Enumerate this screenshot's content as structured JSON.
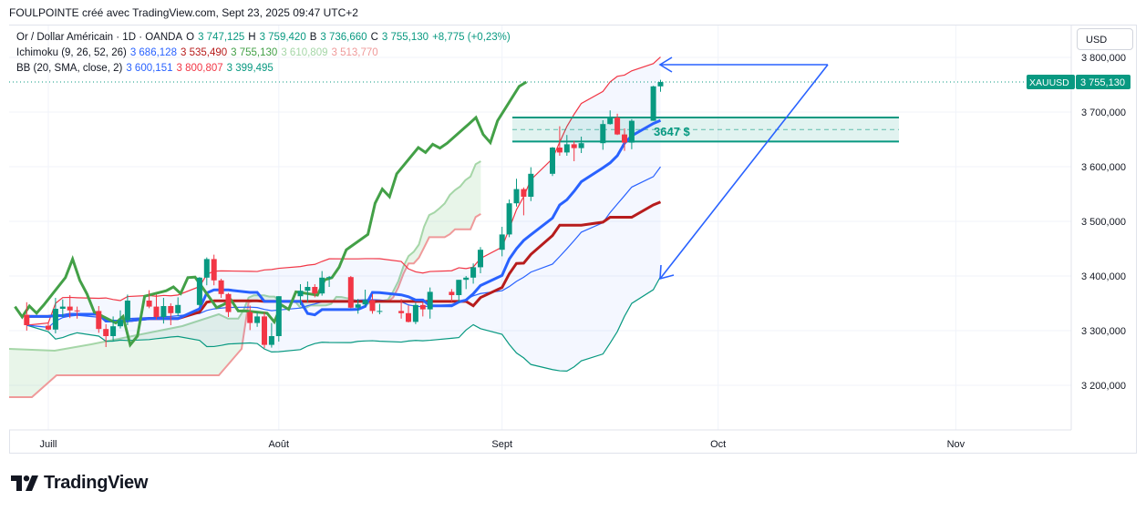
{
  "header": {
    "title": "FOULPOINTE créé avec TradingView.com, Sept 23, 2025 09:47 UTC+2"
  },
  "legend": {
    "symbol": "Or / Dollar Américain · 1D · OANDA",
    "ohlc": {
      "o_label": "O",
      "o": "3 747,125",
      "h_label": "H",
      "h": "3 759,420",
      "b_label": "B",
      "b": "3 736,660",
      "c_label": "C",
      "c": "3 755,130",
      "change": "+8,775 (+0,23%)"
    },
    "ichimoku": {
      "name": "Ichimoku (9, 26, 52, 26)",
      "v1": "3 686,128",
      "v2": "3 535,490",
      "v3": "3 755,130",
      "v4": "3 610,809",
      "v5": "3 513,770"
    },
    "bb": {
      "name": "BB (20, SMA, close, 2)",
      "v1": "3 600,151",
      "v2": "3 800,807",
      "v3": "3 399,495"
    }
  },
  "currency_button": "USD",
  "price_tag": {
    "symbol": "XAUUSD",
    "value": "3 755,130"
  },
  "zone_label": "3647 $",
  "logo_text": "TradingView",
  "colors": {
    "up": "#089981",
    "down": "#f23645",
    "tenkan": "#2962ff",
    "kijun": "#b71c1c",
    "chikou": "#43a047",
    "span_a": "#a5d6a7",
    "span_b": "#ef9a9a",
    "bb_upper": "#f23645",
    "bb_lower": "#089981",
    "bb_basis": "#2962ff",
    "arrow": "#2962ff",
    "zone": "#089981"
  },
  "chart_data": {
    "type": "candlestick",
    "symbol": "XAUUSD",
    "timeframe": "1D",
    "x_labels": [
      "Juill",
      "Août",
      "Sept",
      "Oct",
      "Nov"
    ],
    "y_ticks": [
      3200000,
      3300000,
      3400000,
      3500000,
      3600000,
      3700000,
      3800000
    ],
    "y_tick_labels": [
      "3 200,000",
      "3 300,000",
      "3 400,000",
      "3 500,000",
      "3 600,000",
      "3 700,000",
      "3 800,000"
    ],
    "ylim": [
      3115000,
      3830000
    ],
    "candles": [
      {
        "date": "2025-06-27",
        "o": 3329,
        "h": 3352,
        "l": 3300,
        "c": 3310
      },
      {
        "date": "2025-06-30",
        "o": 3309,
        "h": 3316,
        "l": 3300,
        "c": 3302
      },
      {
        "date": "2025-07-01",
        "o": 3302,
        "h": 3360,
        "l": 3295,
        "c": 3340
      },
      {
        "date": "2025-07-02",
        "o": 3340,
        "h": 3357,
        "l": 3325,
        "c": 3344
      },
      {
        "date": "2025-07-03",
        "o": 3344,
        "h": 3365,
        "l": 3323,
        "c": 3337
      },
      {
        "date": "2025-07-04",
        "o": 3337,
        "h": 3344,
        "l": 3322,
        "c": 3336
      },
      {
        "date": "2025-07-07",
        "o": 3336,
        "h": 3345,
        "l": 3296,
        "c": 3303
      },
      {
        "date": "2025-07-08",
        "o": 3303,
        "h": 3312,
        "l": 3270,
        "c": 3290
      },
      {
        "date": "2025-07-09",
        "o": 3290,
        "h": 3326,
        "l": 3282,
        "c": 3308
      },
      {
        "date": "2025-07-10",
        "o": 3308,
        "h": 3337,
        "l": 3304,
        "c": 3319
      },
      {
        "date": "2025-07-11",
        "o": 3319,
        "h": 3366,
        "l": 3310,
        "c": 3355
      },
      {
        "date": "2025-07-14",
        "o": 3355,
        "h": 3374,
        "l": 3341,
        "c": 3344
      },
      {
        "date": "2025-07-15",
        "o": 3344,
        "h": 3366,
        "l": 3320,
        "c": 3325
      },
      {
        "date": "2025-07-16",
        "o": 3325,
        "h": 3360,
        "l": 3313,
        "c": 3345
      },
      {
        "date": "2025-07-17",
        "o": 3345,
        "h": 3350,
        "l": 3310,
        "c": 3332
      },
      {
        "date": "2025-07-18",
        "o": 3332,
        "h": 3361,
        "l": 3326,
        "c": 3347
      },
      {
        "date": "2025-07-21",
        "o": 3347,
        "h": 3398,
        "l": 3344,
        "c": 3397
      },
      {
        "date": "2025-07-22",
        "o": 3397,
        "h": 3434,
        "l": 3383,
        "c": 3431
      },
      {
        "date": "2025-07-23",
        "o": 3431,
        "h": 3439,
        "l": 3383,
        "c": 3392
      },
      {
        "date": "2025-07-24",
        "o": 3392,
        "h": 3395,
        "l": 3360,
        "c": 3367
      },
      {
        "date": "2025-07-25",
        "o": 3367,
        "h": 3369,
        "l": 3325,
        "c": 3334
      },
      {
        "date": "2025-07-28",
        "o": 3334,
        "h": 3346,
        "l": 3301,
        "c": 3314
      },
      {
        "date": "2025-07-29",
        "o": 3314,
        "h": 3334,
        "l": 3307,
        "c": 3326
      },
      {
        "date": "2025-07-30",
        "o": 3326,
        "h": 3334,
        "l": 3268,
        "c": 3274
      },
      {
        "date": "2025-07-31",
        "o": 3274,
        "h": 3314,
        "l": 3269,
        "c": 3290
      },
      {
        "date": "2025-08-01",
        "o": 3290,
        "h": 3363,
        "l": 3280,
        "c": 3363
      },
      {
        "date": "2025-08-04",
        "o": 3363,
        "h": 3385,
        "l": 3347,
        "c": 3373
      },
      {
        "date": "2025-08-05",
        "o": 3373,
        "h": 3390,
        "l": 3352,
        "c": 3380
      },
      {
        "date": "2025-08-06",
        "o": 3380,
        "h": 3385,
        "l": 3361,
        "c": 3368
      },
      {
        "date": "2025-08-07",
        "o": 3368,
        "h": 3409,
        "l": 3364,
        "c": 3397
      },
      {
        "date": "2025-08-08",
        "o": 3397,
        "h": 3400,
        "l": 3380,
        "c": 3398
      },
      {
        "date": "2025-08-11",
        "o": 3398,
        "h": 3400,
        "l": 3341,
        "c": 3342
      },
      {
        "date": "2025-08-12",
        "o": 3342,
        "h": 3358,
        "l": 3331,
        "c": 3348
      },
      {
        "date": "2025-08-13",
        "o": 3348,
        "h": 3375,
        "l": 3344,
        "c": 3356
      },
      {
        "date": "2025-08-14",
        "o": 3356,
        "h": 3367,
        "l": 3331,
        "c": 3336
      },
      {
        "date": "2025-08-15",
        "o": 3336,
        "h": 3349,
        "l": 3330,
        "c": 3336
      },
      {
        "date": "2025-08-18",
        "o": 3336,
        "h": 3358,
        "l": 3322,
        "c": 3332
      },
      {
        "date": "2025-08-19",
        "o": 3332,
        "h": 3346,
        "l": 3315,
        "c": 3316
      },
      {
        "date": "2025-08-20",
        "o": 3316,
        "h": 3351,
        "l": 3312,
        "c": 3347
      },
      {
        "date": "2025-08-21",
        "o": 3347,
        "h": 3351,
        "l": 3326,
        "c": 3339
      },
      {
        "date": "2025-08-22",
        "o": 3339,
        "h": 3379,
        "l": 3322,
        "c": 3371
      },
      {
        "date": "2025-08-25",
        "o": 3371,
        "h": 3376,
        "l": 3353,
        "c": 3365
      },
      {
        "date": "2025-08-26",
        "o": 3365,
        "h": 3393,
        "l": 3352,
        "c": 3393
      },
      {
        "date": "2025-08-27",
        "o": 3393,
        "h": 3400,
        "l": 3376,
        "c": 3397
      },
      {
        "date": "2025-08-28",
        "o": 3397,
        "h": 3423,
        "l": 3386,
        "c": 3416
      },
      {
        "date": "2025-08-29",
        "o": 3416,
        "h": 3453,
        "l": 3405,
        "c": 3448
      },
      {
        "date": "2025-09-01",
        "o": 3448,
        "h": 3490,
        "l": 3436,
        "c": 3476
      },
      {
        "date": "2025-09-02",
        "o": 3476,
        "h": 3540,
        "l": 3471,
        "c": 3533
      },
      {
        "date": "2025-09-03",
        "o": 3533,
        "h": 3578,
        "l": 3527,
        "c": 3559
      },
      {
        "date": "2025-09-04",
        "o": 3559,
        "h": 3562,
        "l": 3511,
        "c": 3545
      },
      {
        "date": "2025-09-05",
        "o": 3545,
        "h": 3599,
        "l": 3537,
        "c": 3587
      },
      {
        "date": "2025-09-08",
        "o": 3587,
        "h": 3636,
        "l": 3583,
        "c": 3635
      },
      {
        "date": "2025-09-09",
        "o": 3635,
        "h": 3674,
        "l": 3620,
        "c": 3626
      },
      {
        "date": "2025-09-10",
        "o": 3626,
        "h": 3658,
        "l": 3620,
        "c": 3641
      },
      {
        "date": "2025-09-11",
        "o": 3641,
        "h": 3647,
        "l": 3610,
        "c": 3634
      },
      {
        "date": "2025-09-12",
        "o": 3634,
        "h": 3655,
        "l": 3625,
        "c": 3643
      },
      {
        "date": "2025-09-15",
        "o": 3643,
        "h": 3685,
        "l": 3631,
        "c": 3678
      },
      {
        "date": "2025-09-16",
        "o": 3678,
        "h": 3703,
        "l": 3677,
        "c": 3690
      },
      {
        "date": "2025-09-17",
        "o": 3690,
        "h": 3697,
        "l": 3658,
        "c": 3659
      },
      {
        "date": "2025-09-18",
        "o": 3659,
        "h": 3670,
        "l": 3629,
        "c": 3644
      },
      {
        "date": "2025-09-19",
        "o": 3644,
        "h": 3687,
        "l": 3632,
        "c": 3684
      },
      {
        "date": "2025-09-22",
        "o": 3684,
        "h": 3748,
        "l": 3684,
        "c": 3747
      },
      {
        "date": "2025-09-23",
        "o": 3747,
        "h": 3759,
        "l": 3737,
        "c": 3755
      }
    ],
    "note_units": "candle and line values in USD per ounce; axis tick labels are printed with three decimals",
    "support_zone": {
      "upper": 3690,
      "lower": 3646,
      "label": "3647 $"
    }
  }
}
